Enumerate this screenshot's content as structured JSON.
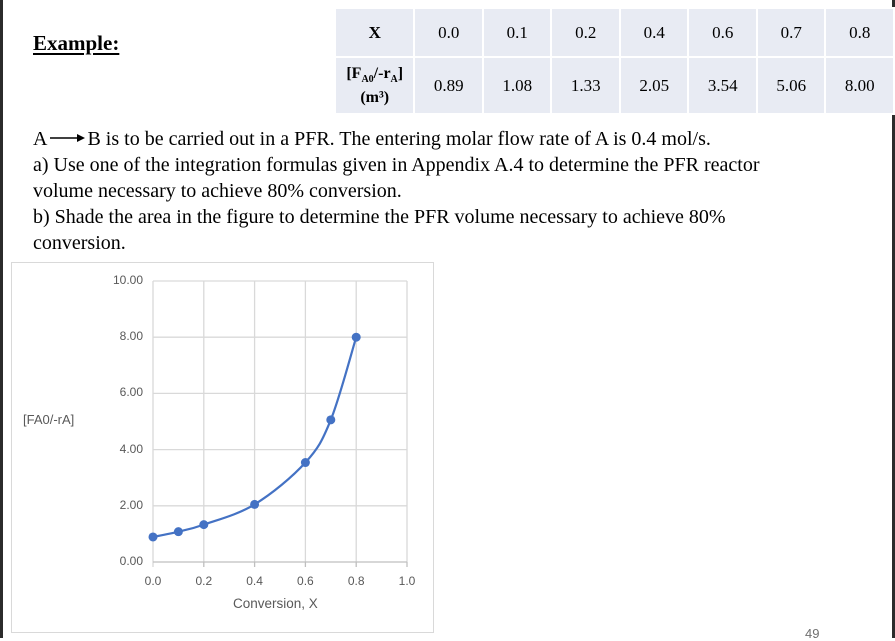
{
  "page": {
    "title": "Example:",
    "page_number": "49"
  },
  "table": {
    "row1_header": "X",
    "row2_header_main": "[F",
    "row2_header_sub1": "A0",
    "row2_header_mid": "/-r",
    "row2_header_sub2": "A",
    "row2_header_end": "]",
    "row2_header_unit": "(m³)",
    "x_values": [
      "0.0",
      "0.1",
      "0.2",
      "0.4",
      "0.6",
      "0.7",
      "0.8"
    ],
    "y_values": [
      "0.89",
      "1.08",
      "1.33",
      "2.05",
      "3.54",
      "5.06",
      "8.00"
    ],
    "bg_color": "#e8ebf3"
  },
  "problem": {
    "reaction_left": "A",
    "reaction_right": "B",
    "line1_rest": " is to be carried out in a PFR.  The entering molar flow rate of A is 0.4 mol/s.",
    "line2": "a) Use one of the integration formulas given in Appendix A.4 to determine the PFR reactor",
    "line3": "volume necessary to achieve 80% conversion.",
    "line4": "b) Shade the area in the figure to determine the PFR volume necessary to achieve 80%",
    "line5": "conversion."
  },
  "chart_data": {
    "type": "scatter",
    "mode": "smooth-line-with-markers",
    "title": "",
    "xlabel": "Conversion, X",
    "ylabel": "[FA0/-rA]",
    "x": [
      0.0,
      0.1,
      0.2,
      0.4,
      0.6,
      0.7,
      0.8
    ],
    "series": [
      {
        "name": "[FA0/-rA]",
        "values": [
          0.89,
          1.08,
          1.33,
          2.05,
          3.54,
          5.06,
          8.0
        ],
        "color": "#4472c4"
      }
    ],
    "xlim": [
      0.0,
      1.0
    ],
    "ylim": [
      0.0,
      10.0
    ],
    "x_ticks": [
      "0.0",
      "0.2",
      "0.4",
      "0.6",
      "0.8",
      "1.0"
    ],
    "y_ticks": [
      "0.00",
      "2.00",
      "4.00",
      "6.00",
      "8.00",
      "10.00"
    ],
    "grid": true,
    "legend": "none"
  }
}
